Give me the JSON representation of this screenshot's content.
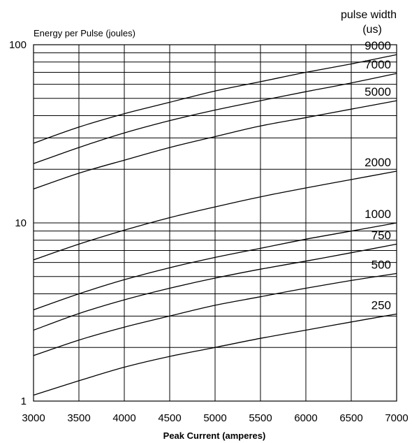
{
  "chart_data": {
    "type": "line",
    "title": "",
    "ylabel": "Energy per Pulse (joules)",
    "xlabel": "Peak Current (amperes)",
    "legend_title_line1": "pulse width",
    "legend_title_line2": "(us)",
    "x_ticks": [
      3000,
      3500,
      4000,
      4500,
      5000,
      5500,
      6000,
      6500,
      7000
    ],
    "x_tick_labels": [
      "3000",
      "3500",
      "4000",
      "4500",
      "5000",
      "5500",
      "6000",
      "6500",
      "7000"
    ],
    "y_scale": "log",
    "ylim": [
      1,
      100
    ],
    "xlim": [
      3000,
      7000
    ],
    "y_tick_labels": [
      {
        "value": 1,
        "label": "1"
      },
      {
        "value": 10,
        "label": "10"
      },
      {
        "value": 100,
        "label": "100"
      }
    ],
    "grid": true,
    "series": [
      {
        "name": "9000",
        "x": [
          3000,
          3500,
          4000,
          4500,
          5000,
          5500,
          6000,
          6500,
          7000
        ],
        "y": [
          28,
          34.5,
          41,
          47.5,
          55,
          62,
          70,
          78,
          88
        ]
      },
      {
        "name": "7000",
        "x": [
          3000,
          3500,
          4000,
          4500,
          5000,
          5500,
          6000,
          6500,
          7000
        ],
        "y": [
          21.5,
          26.5,
          32,
          37.5,
          43,
          48.5,
          54.5,
          61,
          69
        ]
      },
      {
        "name": "5000",
        "x": [
          3000,
          3500,
          4000,
          4500,
          5000,
          5500,
          6000,
          6500,
          7000
        ],
        "y": [
          15.5,
          19,
          22.5,
          26.5,
          30.5,
          35,
          39,
          43.5,
          48.5
        ]
      },
      {
        "name": "2000",
        "x": [
          3000,
          3500,
          4000,
          4500,
          5000,
          5500,
          6000,
          6500,
          7000
        ],
        "y": [
          6.2,
          7.6,
          9.1,
          10.7,
          12.3,
          14,
          15.7,
          17.5,
          19.5
        ]
      },
      {
        "name": "1000",
        "x": [
          3000,
          3500,
          4000,
          4500,
          5000,
          5500,
          6000,
          6500,
          7000
        ],
        "y": [
          3.25,
          4,
          4.8,
          5.6,
          6.4,
          7.2,
          8.1,
          9,
          10
        ]
      },
      {
        "name": "750",
        "x": [
          3000,
          3500,
          4000,
          4500,
          5000,
          5500,
          6000,
          6500,
          7000
        ],
        "y": [
          2.5,
          3.1,
          3.7,
          4.3,
          4.9,
          5.5,
          6.1,
          6.8,
          7.6
        ]
      },
      {
        "name": "500",
        "x": [
          3000,
          3500,
          4000,
          4500,
          5000,
          5500,
          6000,
          6500,
          7000
        ],
        "y": [
          1.8,
          2.2,
          2.6,
          3,
          3.45,
          3.85,
          4.3,
          4.75,
          5.2
        ]
      },
      {
        "name": "250",
        "x": [
          3000,
          3500,
          4000,
          4500,
          5000,
          5500,
          6000,
          6500,
          7000
        ],
        "y": [
          1.08,
          1.3,
          1.55,
          1.78,
          2,
          2.25,
          2.5,
          2.78,
          3.08
        ]
      }
    ]
  }
}
